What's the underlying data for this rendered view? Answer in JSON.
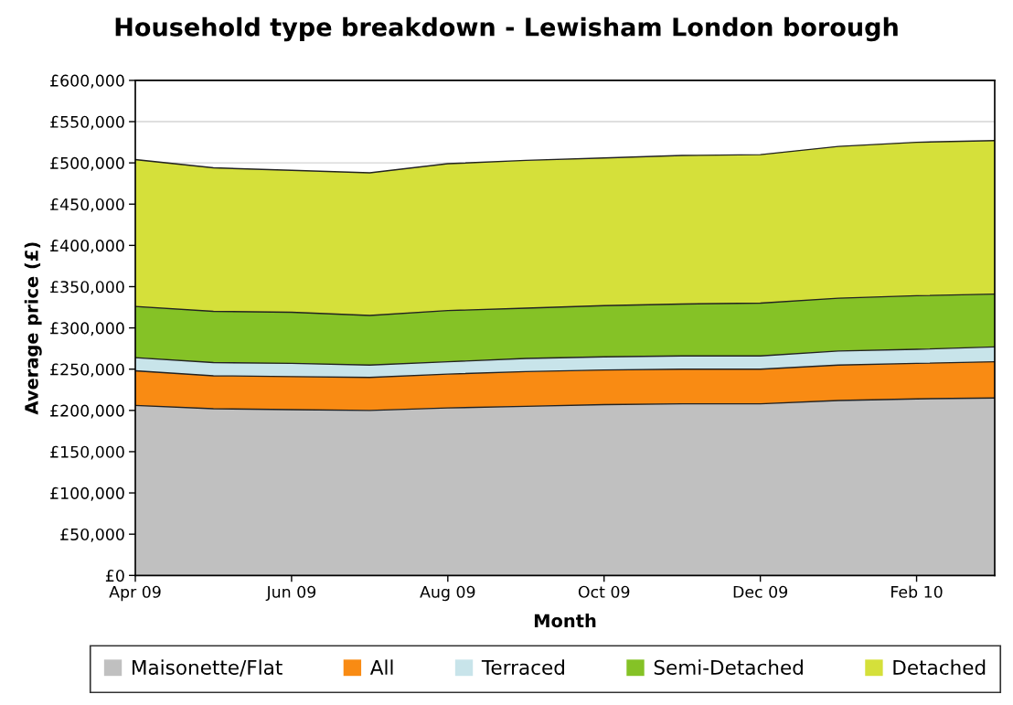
{
  "chart_data": {
    "type": "area",
    "title": "Household type breakdown - Lewisham London borough",
    "xlabel": "Month",
    "ylabel": "Average price (£)",
    "categories": [
      "Apr 09",
      null,
      "Jun 09",
      null,
      "Aug 09",
      null,
      "Oct 09",
      null,
      "Dec 09",
      null,
      "Feb 10",
      null
    ],
    "series": [
      {
        "name": "Maisonette/Flat",
        "color": "#c0c0c0",
        "values": [
          206000,
          202000,
          201000,
          200000,
          203000,
          205000,
          207000,
          208000,
          208000,
          212000,
          214000,
          215000
        ]
      },
      {
        "name": "All",
        "color": "#f98b13",
        "values": [
          248000,
          242000,
          241000,
          240000,
          244000,
          247000,
          249000,
          250000,
          250000,
          255000,
          257000,
          259000
        ]
      },
      {
        "name": "Terraced",
        "color": "#c8e4ea",
        "values": [
          264000,
          258000,
          257000,
          255000,
          259000,
          263000,
          265000,
          266000,
          266000,
          272000,
          274000,
          277000
        ]
      },
      {
        "name": "Semi-Detached",
        "color": "#85c226",
        "values": [
          326000,
          320000,
          319000,
          315000,
          321000,
          324000,
          327000,
          329000,
          330000,
          336000,
          339000,
          341000
        ]
      },
      {
        "name": "Detached",
        "color": "#d5e03a",
        "values": [
          504000,
          494000,
          491000,
          488000,
          499000,
          503000,
          506000,
          509000,
          510000,
          520000,
          525000,
          527000
        ]
      }
    ],
    "ylim": [
      0,
      600000
    ],
    "yticks": [
      {
        "value": 0,
        "label": "£0"
      },
      {
        "value": 50000,
        "label": "£50,000"
      },
      {
        "value": 100000,
        "label": "£100,000"
      },
      {
        "value": 150000,
        "label": "£150,000"
      },
      {
        "value": 200000,
        "label": "£200,000"
      },
      {
        "value": 250000,
        "label": "£250,000"
      },
      {
        "value": 300000,
        "label": "£300,000"
      },
      {
        "value": 350000,
        "label": "£350,000"
      },
      {
        "value": 400000,
        "label": "£400,000"
      },
      {
        "value": 450000,
        "label": "£450,000"
      },
      {
        "value": 500000,
        "label": "£500,000"
      },
      {
        "value": 550000,
        "label": "£550,000"
      },
      {
        "value": 600000,
        "label": "£600,000"
      }
    ],
    "grid": "y",
    "legend": "bottom"
  }
}
